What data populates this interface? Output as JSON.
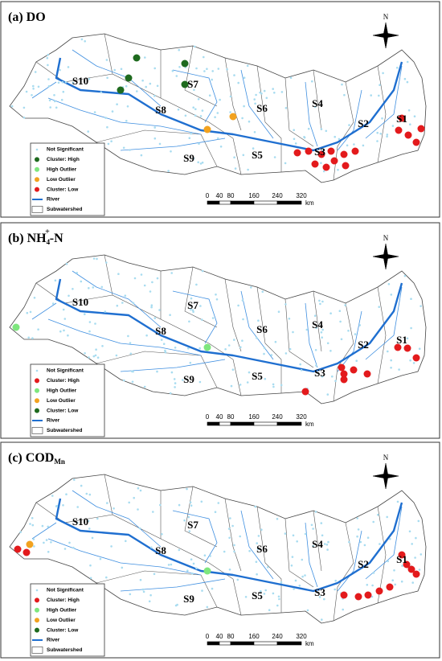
{
  "panels": [
    {
      "title": {
        "prefix": "(a)",
        "main": "DO"
      },
      "subwatersheds": [
        "S1",
        "S2",
        "S3",
        "S4",
        "S5",
        "S6",
        "S7",
        "S8",
        "S9",
        "S10"
      ],
      "legend": [
        {
          "label": "Not Significant",
          "color": "#a8dcf0"
        },
        {
          "label": "Cluster: High",
          "color": "#1e6a1e"
        },
        {
          "label": "High Outlier",
          "color": "#7ee67e"
        },
        {
          "label": "Low Outlier",
          "color": "#f2a21f"
        },
        {
          "label": "Cluster: Low",
          "color": "#e31a1c"
        },
        {
          "label": "River",
          "color": "#1f6fd0"
        },
        {
          "label": "Subwatershed",
          "color": "#555555"
        }
      ],
      "north": "N",
      "scale": [
        0,
        40,
        80,
        160,
        240,
        320
      ],
      "scale_unit": "km"
    },
    {
      "title": {
        "prefix": "(b)",
        "main": "NH",
        "sub": "4",
        "sup": "+",
        "rest": "-N"
      },
      "subwatersheds": [
        "S1",
        "S2",
        "S3",
        "S4",
        "S5",
        "S6",
        "S7",
        "S8",
        "S9",
        "S10"
      ],
      "legend": [
        {
          "label": "Not Significant",
          "color": "#a8dcf0"
        },
        {
          "label": "Cluster: High",
          "color": "#e31a1c"
        },
        {
          "label": "High Outlier",
          "color": "#7ee67e"
        },
        {
          "label": "Low Outlier",
          "color": "#f2a21f"
        },
        {
          "label": "Cluster: Low",
          "color": "#1e6a1e"
        },
        {
          "label": "River",
          "color": "#1f6fd0"
        },
        {
          "label": "Subwatershed",
          "color": "#555555"
        }
      ],
      "north": "N",
      "scale": [
        0,
        40,
        80,
        160,
        240,
        320
      ],
      "scale_unit": "km"
    },
    {
      "title": {
        "prefix": "(c)",
        "main": "COD",
        "sub": "Mn"
      },
      "subwatersheds": [
        "S1",
        "S2",
        "S3",
        "S4",
        "S5",
        "S6",
        "S7",
        "S8",
        "S9",
        "S10"
      ],
      "legend": [
        {
          "label": "Not Significant",
          "color": "#a8dcf0"
        },
        {
          "label": "Cluster: High",
          "color": "#e31a1c"
        },
        {
          "label": "High Outlier",
          "color": "#7ee67e"
        },
        {
          "label": "Low Outlier",
          "color": "#f2a21f"
        },
        {
          "label": "Cluster: Low",
          "color": "#1e6a1e"
        },
        {
          "label": "River",
          "color": "#1f6fd0"
        },
        {
          "label": "Subwatershed",
          "color": "#555555"
        }
      ],
      "north": "N",
      "scale": [
        0,
        40,
        80,
        160,
        240,
        320
      ],
      "scale_unit": "km"
    }
  ]
}
